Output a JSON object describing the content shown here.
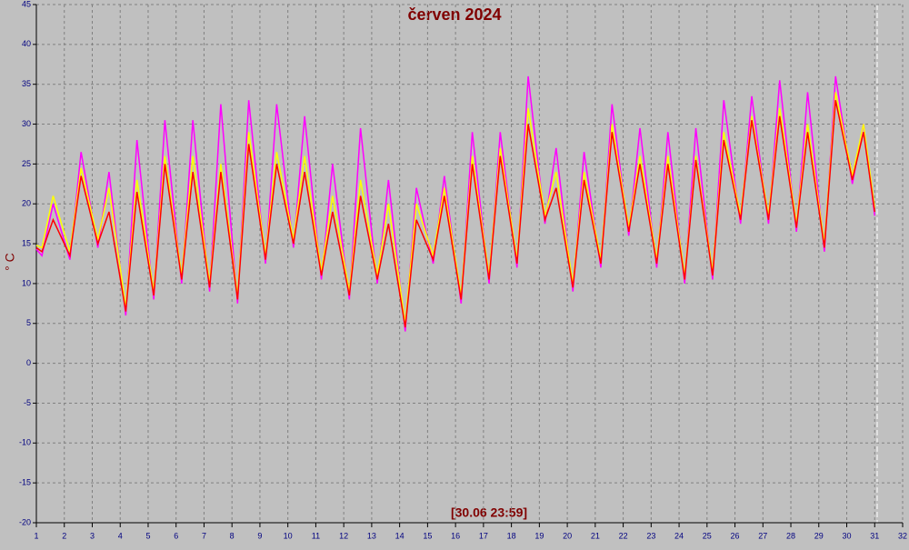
{
  "chart_data": {
    "type": "line",
    "title": "červen 2024",
    "y_label": "° C",
    "annotation": "[30.06 23:59]",
    "x": [
      1,
      1.2,
      1.6,
      2.2,
      2.6,
      3.2,
      3.6,
      4.2,
      4.6,
      5.2,
      5.6,
      6.2,
      6.6,
      7.2,
      7.6,
      8.2,
      8.6,
      9.2,
      9.6,
      10.2,
      10.6,
      11.2,
      11.6,
      12.2,
      12.6,
      13.2,
      13.6,
      14.2,
      14.6,
      15.2,
      15.6,
      16.2,
      16.6,
      17.2,
      17.6,
      18.2,
      18.6,
      19.2,
      19.6,
      20.2,
      20.6,
      21.2,
      21.6,
      22.2,
      22.6,
      23.2,
      23.6,
      24.2,
      24.6,
      25.2,
      25.6,
      26.2,
      26.6,
      27.2,
      27.6,
      28.2,
      28.6,
      29.2,
      29.6,
      30.2,
      30.6,
      31
    ],
    "series": [
      {
        "color": "#ff00ff",
        "values": [
          14.3,
          13.5,
          20,
          13,
          26.5,
          14.5,
          24,
          6,
          28,
          8,
          30.5,
          10,
          30.5,
          9,
          32.5,
          7.5,
          33,
          12.5,
          32.5,
          14.5,
          31,
          10.5,
          25,
          8,
          29.5,
          10,
          23,
          4,
          22,
          12.5,
          23.5,
          7.5,
          29,
          10,
          29,
          12,
          36,
          17.5,
          27,
          9,
          26.5,
          12,
          32.5,
          16,
          29.5,
          12,
          29,
          10,
          29.5,
          10.5,
          33,
          17.5,
          33.5,
          17.5,
          35.5,
          16.5,
          34,
          14,
          36,
          22.5,
          30,
          18.5
        ]
      },
      {
        "color": "#ffff00",
        "values": [
          14.8,
          14.5,
          21,
          14,
          24.5,
          15.5,
          22,
          7,
          23,
          9,
          26,
          11,
          26,
          10,
          25,
          8.5,
          29,
          13.5,
          26.5,
          15.5,
          26,
          11.5,
          21,
          9,
          23,
          11,
          20,
          5,
          20,
          13.5,
          22,
          8.5,
          26,
          11,
          27,
          13,
          32,
          18.5,
          24,
          10,
          24,
          13,
          30,
          17,
          26,
          13,
          26,
          11,
          26,
          11.5,
          29,
          18.5,
          31,
          18.5,
          32,
          17.5,
          30,
          15,
          34,
          23.5,
          30,
          19.5
        ]
      },
      {
        "color": "#ff0000",
        "values": [
          14.5,
          14,
          18,
          13.5,
          23.5,
          15,
          19,
          6.5,
          21.5,
          8.5,
          25,
          10.5,
          24,
          9.5,
          24,
          8,
          27.5,
          13,
          25,
          15,
          24,
          11,
          19,
          8.5,
          21,
          10.5,
          17.5,
          4.5,
          18,
          13,
          21,
          8,
          25,
          10.5,
          26,
          12.5,
          30,
          18,
          22,
          9.5,
          23,
          12.5,
          29,
          16.5,
          25,
          12.5,
          25,
          10.5,
          25.5,
          11,
          28,
          18,
          30.5,
          18,
          31,
          17,
          29,
          14.5,
          33,
          23,
          29,
          19
        ]
      }
    ],
    "xlim": [
      1,
      32
    ],
    "xticks": [
      1,
      2,
      3,
      4,
      5,
      6,
      7,
      8,
      9,
      10,
      11,
      12,
      13,
      14,
      15,
      16,
      17,
      18,
      19,
      20,
      21,
      22,
      23,
      24,
      25,
      26,
      27,
      28,
      29,
      30,
      31,
      32
    ],
    "ylim": [
      -20,
      45
    ],
    "yticks": [
      -20,
      -15,
      -10,
      -5,
      0,
      5,
      10,
      15,
      20,
      25,
      30,
      35,
      40,
      45
    ],
    "grid": true
  }
}
